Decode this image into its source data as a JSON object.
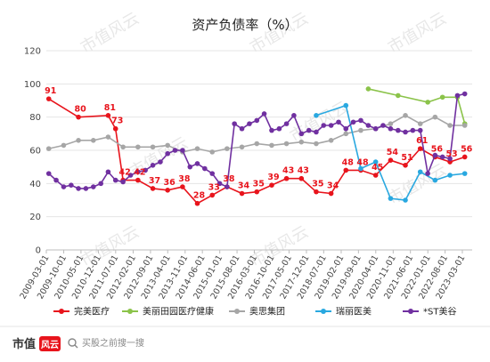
{
  "chart_data": {
    "type": "line",
    "title": "资产负债率（%）",
    "xlabel": "",
    "ylabel": "",
    "ylim": [
      0,
      120
    ],
    "yticks": [
      0,
      20,
      40,
      60,
      80,
      100,
      120
    ],
    "grid": true,
    "legend_position": "bottom",
    "x_tick_labels": [
      "2009-03-01",
      "2009-10-01",
      "2010-05-01",
      "2010-12-01",
      "2011-07-01",
      "2012-02-01",
      "2012-09-01",
      "2013-04-01",
      "2013-11-01",
      "2014-06-01",
      "2015-01-01",
      "2015-08-01",
      "2016-03-01",
      "2016-10-01",
      "2017-05-01",
      "2017-12-01",
      "2018-07-01",
      "2019-02-01",
      "2019-09-01",
      "2020-04-01",
      "2020-11-01",
      "2021-06-01",
      "2022-01-01",
      "2022-08-01",
      "2023-03-01"
    ],
    "x_start": "2009-03-01",
    "series": [
      {
        "name": "完美医疗",
        "color": "#e8141c",
        "x": [
          "2009-03-31",
          "2010-03-31",
          "2011-03-31",
          "2011-06-30",
          "2011-09-30",
          "2012-03-31",
          "2012-09-30",
          "2013-03-31",
          "2013-09-30",
          "2014-03-31",
          "2014-09-30",
          "2015-03-31",
          "2015-09-30",
          "2016-03-31",
          "2016-09-30",
          "2017-03-31",
          "2017-09-30",
          "2018-03-31",
          "2018-09-30",
          "2019-03-31",
          "2019-09-30",
          "2020-03-31",
          "2020-09-30",
          "2021-03-31",
          "2021-09-30",
          "2022-03-31",
          "2022-09-30",
          "2023-03-31"
        ],
        "values": [
          91,
          80,
          81,
          73,
          42,
          42,
          37,
          36,
          38,
          28,
          33,
          38,
          34,
          35,
          39,
          43,
          43,
          35,
          34,
          48,
          48,
          45,
          54,
          51,
          61,
          56,
          53,
          56
        ],
        "labels": [
          91,
          80,
          81,
          73,
          42,
          42,
          37,
          36,
          38,
          28,
          33,
          38,
          34,
          35,
          39,
          43,
          43,
          35,
          34,
          48,
          48,
          45,
          54,
          51,
          61,
          56,
          53,
          56
        ]
      },
      {
        "name": "美丽田园医疗健康",
        "color": "#8bc34a",
        "x": [
          "2019-12-31",
          "2020-12-31",
          "2021-12-31",
          "2022-06-30",
          "2022-12-31",
          "2023-03-31"
        ],
        "values": [
          97,
          93,
          89,
          92,
          92,
          76
        ]
      },
      {
        "name": "奥思集团",
        "color": "#a6a6a6",
        "x": [
          "2009-03-31",
          "2009-09-30",
          "2010-03-31",
          "2010-09-30",
          "2011-03-31",
          "2011-09-30",
          "2012-03-31",
          "2012-09-30",
          "2013-03-31",
          "2013-09-30",
          "2014-03-31",
          "2014-09-30",
          "2015-03-31",
          "2015-09-30",
          "2016-03-31",
          "2016-09-30",
          "2017-03-31",
          "2017-09-30",
          "2018-03-31",
          "2018-09-30",
          "2019-03-31",
          "2019-09-30",
          "2020-03-31",
          "2020-09-30",
          "2021-03-31",
          "2021-09-30",
          "2022-03-31",
          "2022-09-30",
          "2023-03-31"
        ],
        "values": [
          61,
          63,
          66,
          66,
          68,
          62,
          62,
          62,
          63,
          59,
          61,
          59,
          61,
          62,
          64,
          63,
          64,
          65,
          64,
          66,
          70,
          72,
          73,
          76,
          81,
          76,
          80,
          75,
          75
        ]
      },
      {
        "name": "瑞丽医美",
        "color": "#29a8e0",
        "x": [
          "2018-03-31",
          "2019-03-31",
          "2019-09-30",
          "2020-03-31",
          "2020-09-30",
          "2021-03-31",
          "2021-09-30",
          "2022-03-31",
          "2022-09-30",
          "2023-03-31"
        ],
        "values": [
          81,
          87,
          49,
          53,
          31,
          30,
          47,
          42,
          45,
          46
        ]
      },
      {
        "name": "*ST美谷",
        "color": "#7030a0",
        "x": [
          "2009-03-31",
          "2009-06-30",
          "2009-09-30",
          "2009-12-31",
          "2010-03-31",
          "2010-06-30",
          "2010-09-30",
          "2010-12-31",
          "2011-03-31",
          "2011-06-30",
          "2011-09-30",
          "2011-12-31",
          "2012-03-31",
          "2012-06-30",
          "2012-09-30",
          "2012-12-31",
          "2013-03-31",
          "2013-06-30",
          "2013-09-30",
          "2013-12-31",
          "2014-03-31",
          "2014-06-30",
          "2014-09-30",
          "2014-12-31",
          "2015-03-31",
          "2015-06-30",
          "2015-09-30",
          "2015-12-31",
          "2016-03-31",
          "2016-06-30",
          "2016-09-30",
          "2016-12-31",
          "2017-03-31",
          "2017-06-30",
          "2017-09-30",
          "2017-12-31",
          "2018-03-31",
          "2018-06-30",
          "2018-09-30",
          "2018-12-31",
          "2019-03-31",
          "2019-06-30",
          "2019-09-30",
          "2019-12-31",
          "2020-03-31",
          "2020-06-30",
          "2020-09-30",
          "2020-12-31",
          "2021-03-31",
          "2021-06-30",
          "2021-09-30",
          "2021-12-31",
          "2022-03-31",
          "2022-06-30",
          "2022-09-30",
          "2022-12-31",
          "2023-03-31"
        ],
        "values": [
          46,
          42,
          38,
          39,
          37,
          37,
          38,
          40,
          47,
          42,
          41,
          45,
          47,
          48,
          51,
          53,
          58,
          60,
          60,
          50,
          52,
          49,
          46,
          40,
          38,
          76,
          73,
          76,
          78,
          82,
          72,
          73,
          76,
          81,
          70,
          72,
          71,
          75,
          75,
          77,
          73,
          77,
          78,
          75,
          73,
          75,
          73,
          72,
          71,
          72,
          72,
          46,
          57,
          56,
          55,
          93,
          94
        ]
      }
    ]
  },
  "footer": {
    "logo_text": "市值",
    "logo_badge": "风云",
    "search_icon": "search-icon",
    "search_text": "买股之前搜一搜"
  },
  "watermark": "市值风云"
}
